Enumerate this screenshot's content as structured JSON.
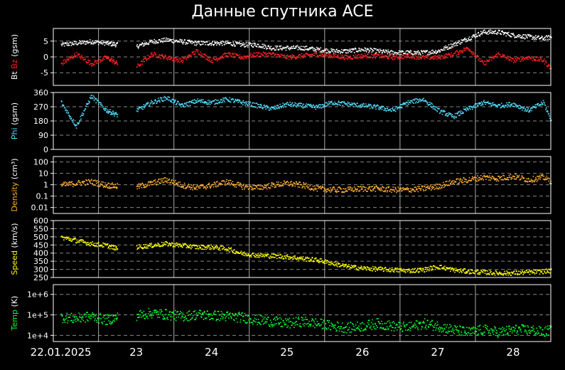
{
  "title": "Данные спутника ACE",
  "colors": {
    "bt": "#ffffff",
    "bz": "#ff2020",
    "phi": "#50e0ff",
    "density": "#ffb030",
    "speed": "#ffff00",
    "temp": "#00ff30",
    "grid": "#888888",
    "frame": "#ffffff",
    "day_line": "#aaaaaa"
  },
  "chart_data": [
    {
      "type": "scatter",
      "panel": "b-field",
      "ylabel_parts": [
        {
          "text": "Bt ",
          "color": "#ffffff"
        },
        {
          "text": "Bz",
          "color": "#ff2020"
        },
        {
          "text": " (gsm)",
          "color": "#ffffff"
        }
      ],
      "ylim": [
        -9,
        9
      ],
      "yticks": [
        5,
        0,
        -5
      ],
      "ytick_labels": [
        "5",
        "0",
        "-5"
      ],
      "series": [
        {
          "key": "bt",
          "color": "#ffffff",
          "x": [
            0,
            0.2,
            0.4,
            0.6,
            0.75,
            0.8,
            1.0,
            1.2,
            1.4,
            1.6,
            1.8,
            2.0,
            2.2,
            2.4,
            2.6,
            2.8,
            3.0,
            3.2,
            3.4,
            3.6,
            3.8,
            4.0,
            4.2,
            4.4,
            4.6,
            4.8,
            5.0,
            5.2,
            5.4,
            5.6,
            5.8,
            6.0,
            6.2,
            6.4,
            6.6,
            6.8
          ],
          "y": [
            4,
            4.5,
            5,
            4.5,
            4,
            null,
            3.5,
            5,
            5.5,
            5,
            4.5,
            4.5,
            4.5,
            4,
            4,
            3,
            3,
            3,
            2.5,
            2,
            2,
            2.5,
            2,
            1.5,
            1.5,
            1.5,
            2,
            4,
            6,
            8,
            8,
            7,
            6.5,
            6,
            7,
            8
          ]
        },
        {
          "key": "bz",
          "color": "#ff2020",
          "x": [
            0,
            0.2,
            0.4,
            0.6,
            0.75,
            0.8,
            1.0,
            1.2,
            1.4,
            1.6,
            1.8,
            2.0,
            2.2,
            2.4,
            2.6,
            2.8,
            3.0,
            3.2,
            3.4,
            3.6,
            3.8,
            4.0,
            4.2,
            4.4,
            4.6,
            4.8,
            5.0,
            5.2,
            5.4,
            5.6,
            5.8,
            6.0,
            6.2,
            6.4,
            6.6,
            6.8
          ],
          "y": [
            -2,
            1,
            -2,
            0,
            -2,
            null,
            -3,
            1,
            0,
            -1,
            2,
            -1,
            1,
            0,
            1,
            1,
            0,
            0.5,
            1,
            0.5,
            0,
            0.5,
            0.5,
            0,
            0.5,
            0,
            0,
            1,
            3,
            -2,
            1,
            -1,
            0,
            -1,
            -6,
            -7
          ]
        }
      ]
    },
    {
      "type": "scatter",
      "panel": "phi",
      "ylabel_parts": [
        {
          "text": "Phi",
          "color": "#50e0ff"
        },
        {
          "text": " (gsm)",
          "color": "#ffffff"
        }
      ],
      "ylim": [
        0,
        360
      ],
      "yticks": [
        360,
        270,
        180,
        90,
        0
      ],
      "ytick_labels": [
        "360",
        "270",
        "180",
        "90",
        "0"
      ],
      "series": [
        {
          "key": "phi",
          "color": "#50e0ff",
          "x": [
            0,
            0.2,
            0.4,
            0.6,
            0.75,
            0.8,
            1.0,
            1.2,
            1.4,
            1.6,
            1.8,
            2.0,
            2.2,
            2.4,
            2.6,
            2.8,
            3.0,
            3.2,
            3.4,
            3.6,
            3.8,
            4.0,
            4.2,
            4.4,
            4.6,
            4.8,
            5.0,
            5.2,
            5.4,
            5.6,
            5.8,
            6.0,
            6.2,
            6.4,
            6.6,
            6.8
          ],
          "y": [
            300,
            150,
            340,
            250,
            220,
            null,
            250,
            300,
            330,
            280,
            310,
            300,
            320,
            300,
            280,
            260,
            290,
            280,
            270,
            300,
            290,
            280,
            270,
            250,
            300,
            320,
            250,
            210,
            260,
            300,
            280,
            290,
            250,
            300,
            60,
            200
          ]
        }
      ]
    },
    {
      "type": "scatter",
      "panel": "density",
      "ylabel_parts": [
        {
          "text": "Density",
          "color": "#ffb030"
        },
        {
          "text": " (cm³)",
          "color": "#ffffff"
        }
      ],
      "scale": "log",
      "ylim": [
        0.003,
        300
      ],
      "yticks": [
        100,
        10,
        1,
        0.1,
        0.01
      ],
      "ytick_labels": [
        "100",
        "10",
        "1",
        "0.1",
        "0.01"
      ],
      "series": [
        {
          "key": "density",
          "color": "#ffb030",
          "x": [
            0,
            0.2,
            0.4,
            0.6,
            0.75,
            0.8,
            1.0,
            1.2,
            1.4,
            1.6,
            1.8,
            2.0,
            2.2,
            2.4,
            2.6,
            2.8,
            3.0,
            3.2,
            3.4,
            3.6,
            3.8,
            4.0,
            4.2,
            4.4,
            4.6,
            4.8,
            5.0,
            5.2,
            5.4,
            5.6,
            5.8,
            6.0,
            6.2,
            6.4,
            6.6,
            6.8
          ],
          "y": [
            1,
            1.5,
            2,
            1,
            0.8,
            null,
            0.7,
            1.5,
            3,
            1,
            0.6,
            1,
            2,
            0.8,
            0.6,
            1,
            1.5,
            1,
            0.5,
            0.4,
            0.4,
            0.5,
            0.5,
            0.4,
            0.4,
            0.5,
            0.8,
            2,
            3,
            5,
            4,
            6,
            3,
            5,
            1,
            2
          ]
        }
      ]
    },
    {
      "type": "scatter",
      "panel": "speed",
      "ylabel_parts": [
        {
          "text": "Speed",
          "color": "#ffff00"
        },
        {
          "text": " (km/s)",
          "color": "#ffffff"
        }
      ],
      "ylim": [
        250,
        600
      ],
      "yticks": [
        600,
        550,
        500,
        450,
        400,
        350,
        300,
        250
      ],
      "ytick_labels": [
        "600",
        "550",
        "500",
        "450",
        "400",
        "350",
        "300",
        "250"
      ],
      "series": [
        {
          "key": "speed",
          "color": "#ffff00",
          "x": [
            0,
            0.2,
            0.4,
            0.6,
            0.75,
            0.8,
            1.0,
            1.2,
            1.4,
            1.6,
            1.8,
            2.0,
            2.2,
            2.4,
            2.6,
            2.8,
            3.0,
            3.2,
            3.4,
            3.6,
            3.8,
            4.0,
            4.2,
            4.4,
            4.6,
            4.8,
            5.0,
            5.2,
            5.4,
            5.6,
            5.8,
            6.0,
            6.2,
            6.4,
            6.6,
            6.8
          ],
          "y": [
            500,
            480,
            460,
            450,
            430,
            null,
            440,
            450,
            460,
            450,
            440,
            440,
            430,
            400,
            390,
            385,
            380,
            370,
            360,
            340,
            320,
            310,
            305,
            300,
            295,
            300,
            320,
            300,
            290,
            285,
            280,
            280,
            285,
            290,
            300,
            330
          ]
        }
      ]
    },
    {
      "type": "scatter",
      "panel": "temp",
      "ylabel_parts": [
        {
          "text": "Temp",
          "color": "#00ff30"
        },
        {
          "text": " (K)",
          "color": "#ffffff"
        }
      ],
      "scale": "log",
      "ylim": [
        5000,
        3000000
      ],
      "yticks": [
        1000000,
        100000,
        10000
      ],
      "ytick_labels": [
        "1e+6",
        "1e+5",
        "1e+4"
      ],
      "series": [
        {
          "key": "temp",
          "color": "#00ff30",
          "x": [
            0,
            0.2,
            0.4,
            0.6,
            0.75,
            0.8,
            1.0,
            1.2,
            1.4,
            1.6,
            1.8,
            2.0,
            2.2,
            2.4,
            2.6,
            2.8,
            3.0,
            3.2,
            3.4,
            3.6,
            3.8,
            4.0,
            4.2,
            4.4,
            4.6,
            4.8,
            5.0,
            5.2,
            5.4,
            5.6,
            5.8,
            6.0,
            6.2,
            6.4,
            6.6,
            6.8
          ],
          "y": [
            80000,
            70000,
            90000,
            60000,
            80000,
            null,
            100000,
            130000,
            110000,
            90000,
            110000,
            100000,
            90000,
            80000,
            60000,
            50000,
            40000,
            50000,
            40000,
            30000,
            25000,
            30000,
            40000,
            30000,
            25000,
            40000,
            30000,
            20000,
            15000,
            20000,
            15000,
            20000,
            20000,
            15000,
            30000,
            50000
          ]
        }
      ]
    }
  ],
  "x_axis": {
    "xlim": [
      -0.1,
      6.5
    ],
    "date_ticks": [
      {
        "value": 0,
        "label": "22.01.2025"
      },
      {
        "value": 1,
        "label": "23"
      },
      {
        "value": 2,
        "label": "24"
      },
      {
        "value": 3,
        "label": "25"
      },
      {
        "value": 4,
        "label": "26"
      },
      {
        "value": 5,
        "label": "27"
      },
      {
        "value": 6,
        "label": "28"
      }
    ],
    "day_lines": [
      0.5,
      1.5,
      2.5,
      3.5,
      4.5,
      5.5
    ]
  }
}
